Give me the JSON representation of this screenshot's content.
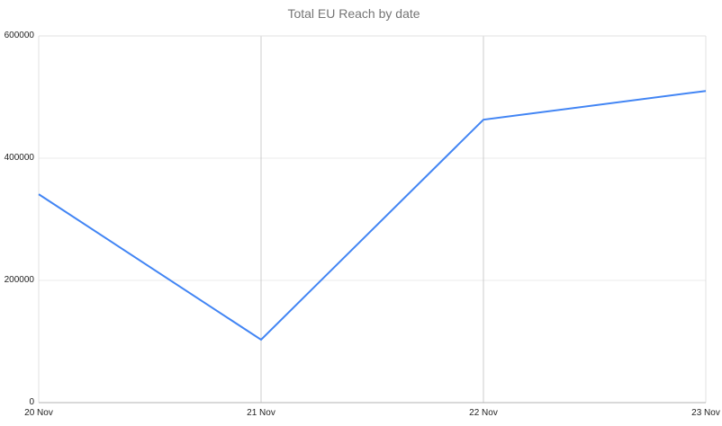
{
  "chart_title": "Total EU Reach by date",
  "colors": {
    "line": "#4285f4",
    "title_text": "#757575",
    "axis_text": "#222222",
    "vertical_gridline": "#cccccc",
    "horizontal_gridline": "#ebebeb",
    "plot_border": "#e0e0e0",
    "baseline": "#b3b3b3",
    "background": "#ffffff"
  },
  "chart_data": {
    "type": "line",
    "title": "Total EU Reach by date",
    "xlabel": "",
    "ylabel": "",
    "categories": [
      "20 Nov",
      "21 Nov",
      "22 Nov",
      "23 Nov"
    ],
    "series": [
      {
        "name": "Total EU Reach",
        "values": [
          341000,
          103000,
          463000,
          510000
        ]
      }
    ],
    "ylim": [
      0,
      600000
    ],
    "ytick_interval": 200000,
    "ytick_labels": [
      "0",
      "200000",
      "400000",
      "600000"
    ],
    "grid": true,
    "legend_position": "none"
  }
}
